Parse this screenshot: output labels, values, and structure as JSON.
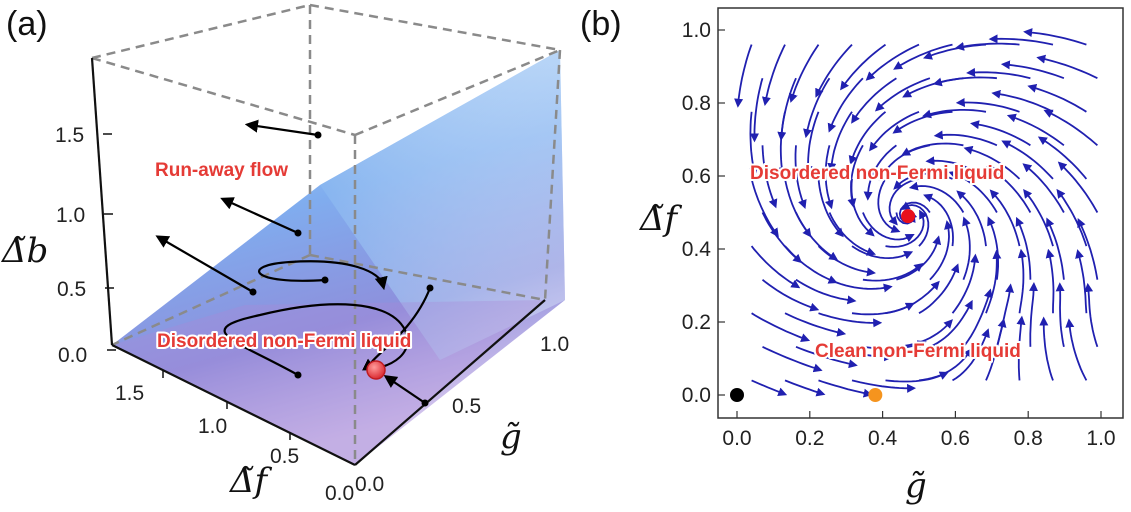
{
  "panels": {
    "a": {
      "label": "(a)"
    },
    "b": {
      "label": "(b)"
    }
  },
  "chart_data": [
    {
      "type": "scatter",
      "panel": "(a)",
      "description_3d": true,
      "axes": {
        "g": {
          "label": "g̃",
          "ticks": [
            "0.0",
            "0.5",
            "1.0"
          ]
        },
        "delta_f": {
          "label": "Δ̃f",
          "ticks": [
            "0.0",
            "0.5",
            "1.0",
            "1.5"
          ]
        },
        "delta_b": {
          "label": "Δ̃b",
          "ticks": [
            "0.0",
            "0.5",
            "1.0",
            "1.5"
          ]
        }
      },
      "annotations": [
        "Run-away flow",
        "Disordered non-Fermi liquid"
      ],
      "fixed_points": [
        {
          "name": "Disordered non-Fermi liquid",
          "color": "#e53b36"
        }
      ],
      "colors": {
        "volume_top": "#9fd0f5",
        "volume_mid": "#6f86d8",
        "volume_bottom": "#9a7dd0",
        "trajectory": "#000000"
      }
    },
    {
      "type": "scatter",
      "panel": "(b)",
      "xlabel": "g̃",
      "ylabel": "Δ̃f",
      "xlim": [
        0,
        1
      ],
      "ylim": [
        0,
        1
      ],
      "x_ticks": [
        "0.0",
        "0.2",
        "0.4",
        "0.6",
        "0.8",
        "1.0"
      ],
      "y_ticks": [
        "0.0",
        "0.2",
        "0.4",
        "0.6",
        "0.8",
        "1.0"
      ],
      "annotations": [
        "Disordered non-Fermi liquid",
        "Clean non-Fermi liquid"
      ],
      "fixed_points": [
        {
          "x": 0.0,
          "y": 0.0,
          "color": "#000000"
        },
        {
          "x": 0.38,
          "y": 0.0,
          "color": "#f5941e",
          "label": "Clean non-Fermi liquid"
        },
        {
          "x": 0.47,
          "y": 0.49,
          "color": "#e8101c",
          "label": "Disordered non-Fermi liquid"
        }
      ],
      "stream_color": "#2020b0"
    }
  ]
}
